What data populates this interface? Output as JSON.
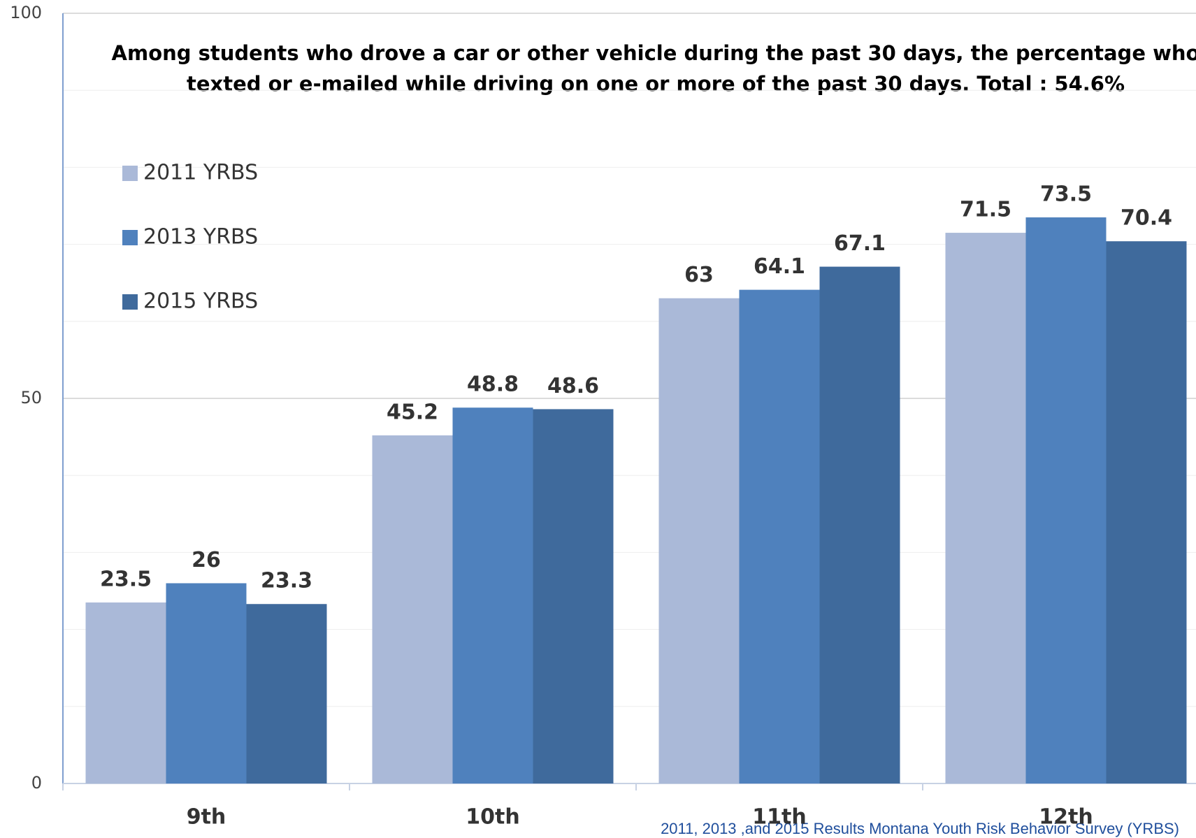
{
  "chart_data": {
    "type": "bar",
    "subtitle": [
      "Among students who drove a car or other vehicle during the past 30 days, the percentage who",
      "texted or e-mailed while driving on one or more of the past 30 days.   Total : 54.6%"
    ],
    "categories": [
      "9th",
      "10th",
      "11th",
      "12th"
    ],
    "series": [
      {
        "name": "2011 YRBS",
        "color": "#aab9d8",
        "values": [
          23.5,
          45.2,
          63,
          71.5
        ]
      },
      {
        "name": "2013 YRBS",
        "color": "#4f81bd",
        "values": [
          26,
          48.8,
          64.1,
          73.5
        ]
      },
      {
        "name": "2015 YRBS",
        "color": "#3f6a9c",
        "values": [
          23.3,
          48.6,
          67.1,
          70.4
        ]
      }
    ],
    "ylim": [
      0,
      100
    ],
    "yticks": [
      0,
      50,
      100
    ],
    "minor_yticks": [
      10,
      20,
      30,
      40,
      60,
      70,
      80,
      90
    ],
    "grid": true,
    "legend": "upper left",
    "source": "2011, 2013 ,and 2015 Results Montana Youth Risk Behavior Survey (YRBS)"
  }
}
